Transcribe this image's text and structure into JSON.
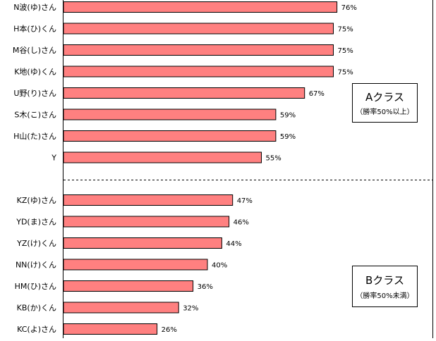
{
  "chart_data": {
    "type": "bar",
    "orientation": "horizontal",
    "xlim": [
      0,
      100
    ],
    "grid": false,
    "value_suffix": "%",
    "colors": {
      "bar": "#ff8080",
      "bar_border": "#000000"
    },
    "categories": [
      "N波(ゆ)さん",
      "H本(ひ)くん",
      "M谷(し)さん",
      "K地(ゆ)くん",
      "U野(り)さん",
      "S木(こ)さん",
      "H山(た)さん",
      "Y",
      "KZ(ゆ)さん",
      "YD(ま)さん",
      "YZ(け)くん",
      "NN(け)くん",
      "HM(ひ)さん",
      "KB(か)くん",
      "KC(よ)さん"
    ],
    "values": [
      76,
      75,
      75,
      75,
      67,
      59,
      59,
      55,
      47,
      46,
      44,
      40,
      36,
      32,
      26
    ],
    "groups": [
      {
        "title": "Aクラス",
        "subtitle": "（勝率50%以上）"
      },
      {
        "title": "Bクラス",
        "subtitle": "（勝率50%未満）"
      }
    ]
  }
}
